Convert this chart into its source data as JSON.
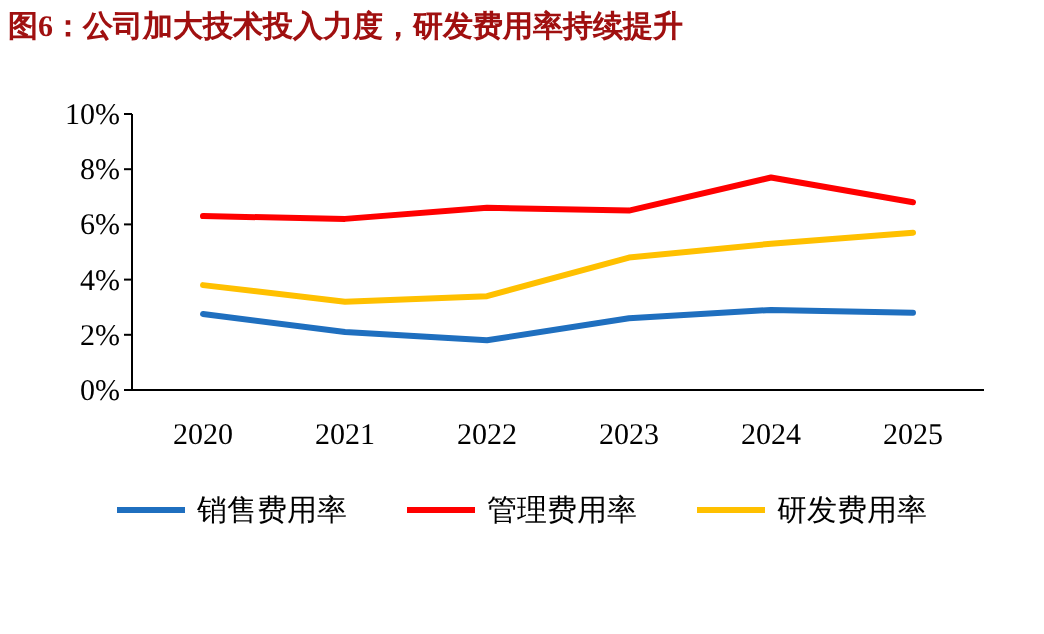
{
  "chart_data": {
    "type": "line",
    "title": "图6：公司加大技术投入力度，研发费用率持续提升",
    "categories": [
      "2020",
      "2021",
      "2022",
      "2023",
      "2024",
      "2025"
    ],
    "series": [
      {
        "name": "销售费用率",
        "color": "#1f6fbf",
        "values": [
          2.75,
          2.1,
          1.8,
          2.6,
          2.9,
          2.8
        ]
      },
      {
        "name": "管理费用率",
        "color": "#ff0000",
        "values": [
          6.3,
          6.2,
          6.6,
          6.5,
          7.7,
          6.8
        ]
      },
      {
        "name": "研发费用率",
        "color": "#ffc000",
        "values": [
          3.8,
          3.2,
          3.4,
          4.8,
          5.3,
          5.7
        ]
      }
    ],
    "ylim": [
      0,
      10
    ],
    "yticks": [
      {
        "value": 0,
        "label": "0%"
      },
      {
        "value": 2,
        "label": "2%"
      },
      {
        "value": 4,
        "label": "4%"
      },
      {
        "value": 6,
        "label": "6%"
      },
      {
        "value": 8,
        "label": "8%"
      },
      {
        "value": 10,
        "label": "10%"
      }
    ],
    "legend": "bottom"
  }
}
